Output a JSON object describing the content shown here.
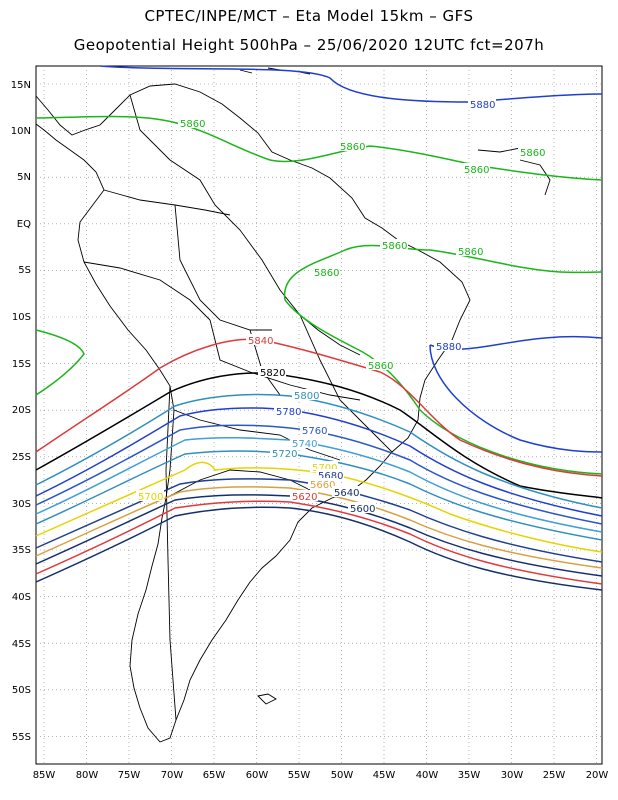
{
  "title_line1": "CPTEC/INPE/MCT –  Eta Model 15km – GFS",
  "title_line2": "Geopotential Height 500hPa – 25/06/2020 12UTC fct=207h",
  "lat_labels": [
    "15N",
    "10N",
    "5N",
    "EQ",
    "5S",
    "10S",
    "15S",
    "20S",
    "25S",
    "30S",
    "35S",
    "40S",
    "45S",
    "50S",
    "55S"
  ],
  "lon_labels": [
    "85W",
    "80W",
    "75W",
    "70W",
    "65W",
    "60W",
    "55W",
    "50W",
    "45W",
    "40W",
    "35W",
    "30W",
    "25W",
    "20W"
  ],
  "contour_labels": [
    {
      "text": "5880",
      "color": "#1f3fd0"
    },
    {
      "text": "5860",
      "color": "#1ab61a"
    },
    {
      "text": "5860",
      "color": "#1ab61a"
    },
    {
      "text": "5860",
      "color": "#1ab61a"
    },
    {
      "text": "5860",
      "color": "#1ab61a"
    },
    {
      "text": "5860",
      "color": "#1ab61a"
    },
    {
      "text": "5860",
      "color": "#1ab61a"
    },
    {
      "text": "5860",
      "color": "#1ab61a"
    },
    {
      "text": "5860",
      "color": "#1ab61a"
    },
    {
      "text": "5880",
      "color": "#1f3fd0"
    },
    {
      "text": "5840",
      "color": "#e0393c"
    },
    {
      "text": "5820",
      "color": "#000000"
    },
    {
      "text": "5800",
      "color": "#2f8fbf"
    },
    {
      "text": "5780",
      "color": "#1f3fd0"
    },
    {
      "text": "5760",
      "color": "#2a56c8"
    },
    {
      "text": "5740",
      "color": "#3f9fd6"
    },
    {
      "text": "5720",
      "color": "#2f8fbf"
    },
    {
      "text": "5700",
      "color": "#e6d400"
    },
    {
      "text": "5700",
      "color": "#e6d400"
    },
    {
      "text": "5680",
      "color": "#1f3f8f"
    },
    {
      "text": "5660",
      "color": "#d8a040"
    },
    {
      "text": "5640",
      "color": "#13306e"
    },
    {
      "text": "5620",
      "color": "#e0393c"
    },
    {
      "text": "5600",
      "color": "#13306e"
    }
  ],
  "colors": {
    "c5880": "#1f3fd0",
    "c5860": "#1ab61a",
    "c5840": "#e0393c",
    "c5820": "#000000",
    "c5800": "#2f8fbf",
    "c5780": "#1f3fd0",
    "c5760": "#2a56c8",
    "c5740": "#3f9fd6",
    "c5720": "#2f8fbf",
    "c5700": "#e6d400",
    "c5680": "#1f3f8f",
    "c5660": "#d8a040",
    "c5640": "#13306e",
    "c5620": "#e0393c",
    "c5600": "#13306e"
  }
}
